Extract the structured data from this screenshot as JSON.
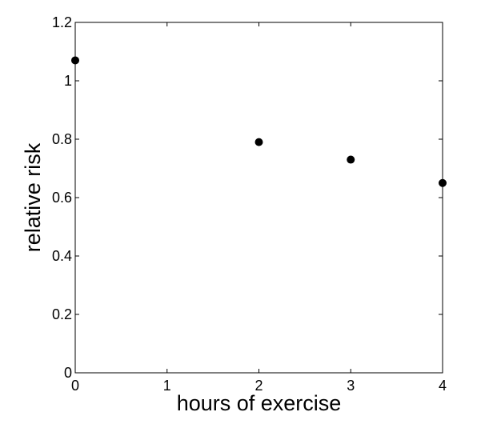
{
  "chart_data": {
    "type": "scatter",
    "title": "",
    "xlabel": "hours of exercise",
    "ylabel": "relative risk",
    "xlim": [
      0,
      4
    ],
    "ylim": [
      0,
      1.2
    ],
    "x_ticks": [
      "0",
      "1",
      "2",
      "3",
      "4"
    ],
    "y_ticks": [
      "0",
      "0.2",
      "0.4",
      "0.6",
      "0.8",
      "1",
      "1.2"
    ],
    "grid": false,
    "legend": "none",
    "marker_color": "#000000",
    "series": [
      {
        "points": [
          {
            "x": 0,
            "y": 1.07
          },
          {
            "x": 2,
            "y": 0.79
          },
          {
            "x": 3,
            "y": 0.73
          },
          {
            "x": 4,
            "y": 0.65
          }
        ]
      }
    ]
  }
}
